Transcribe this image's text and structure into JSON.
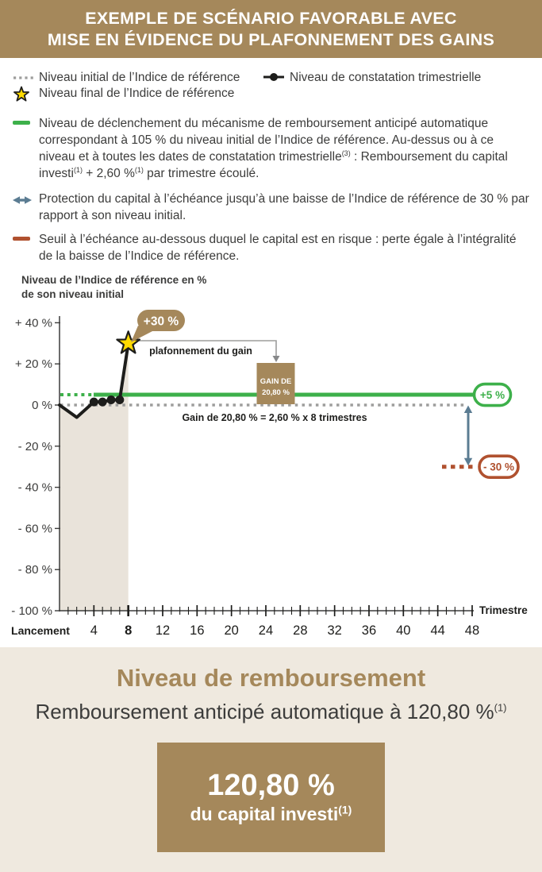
{
  "header": {
    "title_line1": "EXEMPLE DE SCÉNARIO FAVORABLE AVEC",
    "title_line2": "MISE EN ÉVIDENCE DU PLAFONNEMENT DES GAINS"
  },
  "legend": {
    "initial_level": "Niveau initial de l’Indice de référence",
    "final_level": "Niveau final de l’Indice de référence",
    "quarterly_observation": "Niveau de constatation trimestrielle",
    "trigger": {
      "part1": "Niveau de déclenchement du mécanisme de remboursement anticipé automatique correspondant à 105 % du niveau initial de l’Indice de référence. Au-dessus ou à ce niveau et à toutes les dates de constatation trimestrielle",
      "sup1": "(3)",
      "part2": " : Remboursement du capital investi",
      "sup2": "(1)",
      "part3": " + 2,60 %",
      "sup3": "(1)",
      "part4": " par trimestre écoulé."
    },
    "protection": "Protection du capital à l’échéance jusqu’à une baisse de l’Indice de référence de 30 % par rapport à son niveau initial.",
    "risk": "Seuil à l’échéance au-dessous duquel le capital est en risque : perte égale à l’intégralité de la baisse de l’Indice de référence."
  },
  "chart_data": {
    "type": "line",
    "title_lines": [
      "Niveau de l’Indice de référence en %",
      "de son niveau initial"
    ],
    "x_axis": {
      "label": "Trimestre",
      "origin_label": "Lancement",
      "max": 48,
      "labeled_ticks": [
        4,
        8,
        12,
        16,
        20,
        24,
        28,
        32,
        36,
        40,
        44,
        48
      ],
      "bold_tick": 8
    },
    "y_axis": {
      "ticks": [
        {
          "value": 40,
          "label": "+ 40 %"
        },
        {
          "value": 20,
          "label": "+ 20 %"
        },
        {
          "value": 0,
          "label": "0 %"
        },
        {
          "value": -20,
          "label": "- 20 %"
        },
        {
          "value": -40,
          "label": "- 40 %"
        },
        {
          "value": -60,
          "label": "- 60 %"
        },
        {
          "value": -80,
          "label": "- 80 %"
        },
        {
          "value": -100,
          "label": "- 100 %"
        }
      ]
    },
    "series": {
      "name": "Indice de référence",
      "points": [
        [
          0,
          0
        ],
        [
          2,
          -6
        ],
        [
          4,
          1.5
        ],
        [
          5,
          1.5
        ],
        [
          6,
          2.5
        ],
        [
          7,
          2.5
        ],
        [
          8,
          30
        ]
      ],
      "quarterly_markers": [
        4,
        5,
        6,
        7
      ],
      "final_point": {
        "x": 8,
        "y": 30
      }
    },
    "reference_lines": {
      "initial_level": {
        "value": 0
      },
      "trigger_level": {
        "value": 5,
        "label": "+5 %"
      },
      "risk_threshold": {
        "value": -30,
        "label": "- 30 %"
      }
    },
    "shaded_region": {
      "from_x": 0,
      "to_x": 8
    },
    "annotations": {
      "peak_callout": "+30 %",
      "cap_label": "plafonnement du gain",
      "gain_box_lines": [
        "GAIN DE",
        "20,80 %"
      ],
      "gain_formula": "Gain de 20,80 % = 2,60 % x 8 trimestres"
    }
  },
  "footer": {
    "title": "Niveau de remboursement",
    "redemption_line": "Remboursement anticipé automatique à 120,80 %",
    "redemption_sup": "(1)",
    "box_value": "120,80 %",
    "box_label": "du capital investi",
    "box_sup": "(1)"
  },
  "colors": {
    "brand_brown": "#A5885B",
    "cream_background": "#EFE9DF",
    "green_trigger": "#3DB04A",
    "red_risk": "#B0512F",
    "steel_blue_protection": "#5B7C92",
    "gray_reference": "#9D9D9C",
    "text_dark": "#3C3C3B",
    "curve_black": "#1D1D1B",
    "star_yellow": "#FFDA00",
    "shade_beige": "#E9E3DA"
  }
}
